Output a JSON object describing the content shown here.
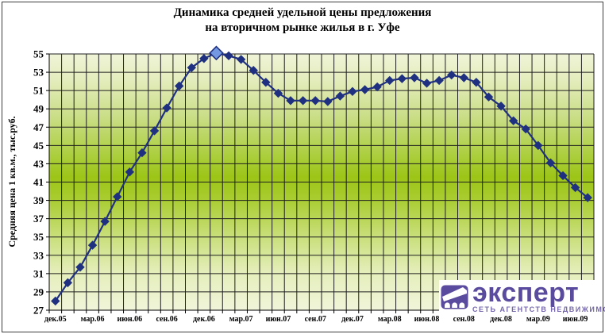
{
  "chart_data": {
    "type": "line",
    "title": "Динамика средней удельной цены предложения на вторичном рынке жилья в г. Уфе",
    "title_line1": "Динамика средней удельной цены предложения",
    "title_line2": "на вторичном рынке жилья в г. Уфе",
    "ylabel": "Средняя цена 1 кв.м., тыс.руб.",
    "ylim": [
      27,
      55
    ],
    "y_tick_step": 2,
    "y_tick_labels": [
      "55",
      "53",
      "51",
      "49",
      "47",
      "45",
      "43",
      "41",
      "39",
      "37",
      "35",
      "33",
      "31",
      "29",
      "27"
    ],
    "x_tick_labels": [
      "дек.05",
      "мар.06",
      "июн.06",
      "сен.06",
      "дек.06",
      "мар.07",
      "июн.07",
      "сен.07",
      "дек.07",
      "мар.08",
      "июн.08",
      "сен.08",
      "дек.08",
      "мар.09",
      "июн.09"
    ],
    "x_tick_every": 3,
    "grid": true,
    "marker": "diamond",
    "values": [
      28.0,
      30.0,
      31.7,
      34.1,
      36.7,
      39.4,
      42.1,
      44.2,
      46.6,
      49.1,
      51.5,
      53.5,
      54.5,
      55.1,
      54.8,
      54.4,
      53.2,
      51.9,
      50.7,
      49.9,
      49.9,
      49.9,
      49.8,
      50.4,
      50.9,
      51.1,
      51.4,
      52.1,
      52.3,
      52.4,
      51.8,
      52.1,
      52.7,
      52.4,
      51.9,
      50.3,
      49.3,
      47.7,
      46.8,
      45.0,
      43.1,
      41.7,
      40.4,
      39.3
    ],
    "highlight_index": 13
  },
  "logo": {
    "name": "эксперт",
    "tagline": "СЕТЬ АГЕНТСТВ НЕДВИЖИМОСТИ"
  },
  "colors": {
    "line_navy": "#203080",
    "highlight_fill": "#7499e2",
    "grid": "#1f1f1f",
    "axis": "#000000",
    "logo_purple": "#5b4b9e",
    "logo_tagline_purple": "#7668ab",
    "plot_gradient": [
      [
        "0%",
        "#f0f4d8"
      ],
      [
        "10%",
        "#e4edbd"
      ],
      [
        "25%",
        "#c9dd85"
      ],
      [
        "40%",
        "#abce3c"
      ],
      [
        "48%",
        "#9cc517"
      ],
      [
        "56%",
        "#a8cc2e"
      ],
      [
        "70%",
        "#c6dd74"
      ],
      [
        "85%",
        "#e4eeba"
      ],
      [
        "100%",
        "#f1f5da"
      ]
    ]
  }
}
